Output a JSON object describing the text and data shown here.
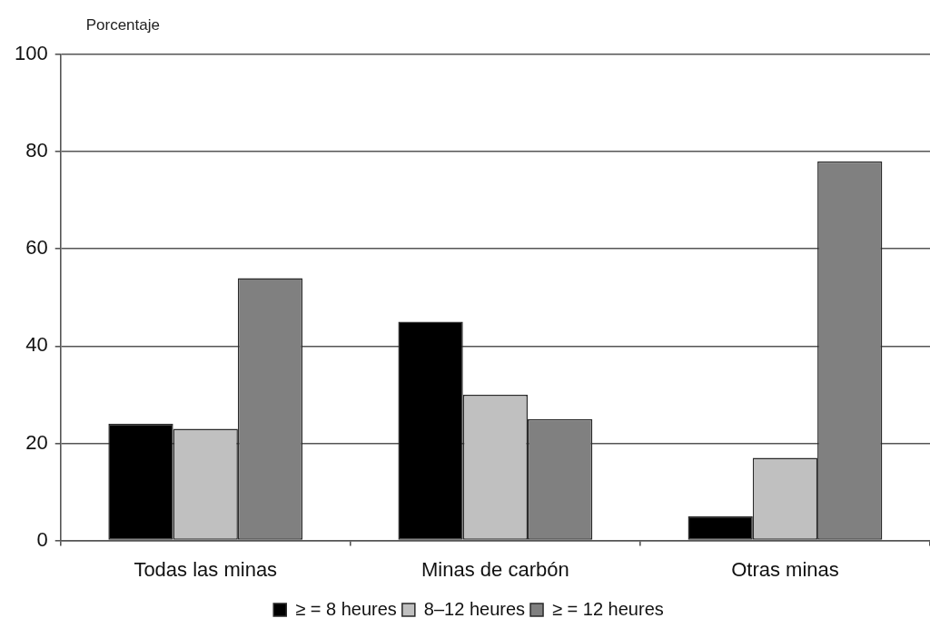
{
  "chart_data": {
    "type": "bar",
    "ylabel": "Porcentaje",
    "categories": [
      "Todas las minas",
      "Minas de carbón",
      "Otras minas"
    ],
    "series": [
      {
        "name": "≥ = 8 heures",
        "color": "#000000",
        "values": [
          24,
          45,
          5
        ]
      },
      {
        "name": "8–12 heures",
        "color": "#c0c0c0",
        "values": [
          23,
          30,
          17
        ]
      },
      {
        "name": "≥ = 12 heures",
        "color": "#808080",
        "values": [
          54,
          25,
          78
        ]
      }
    ],
    "ylim": [
      0,
      100
    ],
    "yticks": [
      0,
      20,
      40,
      60,
      80,
      100
    ],
    "grid": "y",
    "legend": "bottom"
  }
}
